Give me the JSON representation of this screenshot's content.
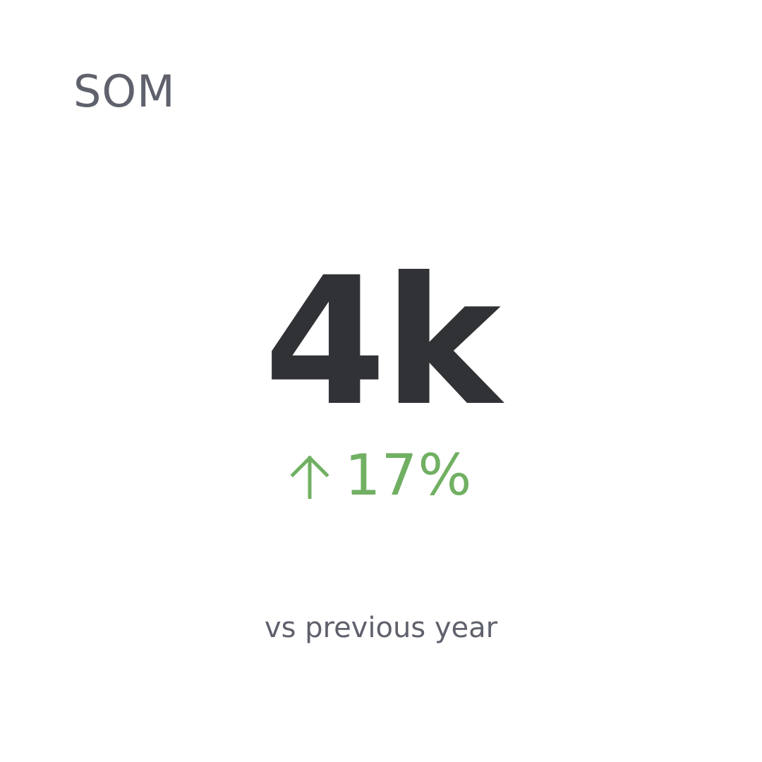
{
  "widget": {
    "title": "SOM",
    "value": "4k",
    "change": {
      "direction": "up",
      "icon": "arrow-up-icon",
      "value": "17%",
      "color": "#71b063"
    },
    "comparison_label": "vs previous year"
  },
  "colors": {
    "title": "#5f616c",
    "value": "#313235",
    "label": "#5f616c",
    "background": "#ffffff"
  }
}
